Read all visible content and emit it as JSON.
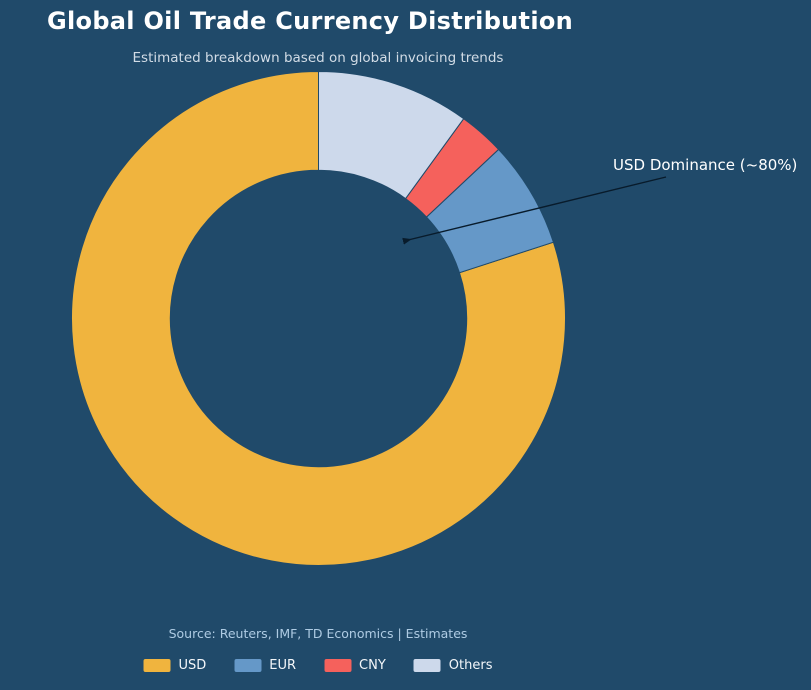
{
  "page": {
    "title": "Global Oil Trade Currency Distribution",
    "subtitle": "Estimated breakdown based on global invoicing trends",
    "source": "Source: Reuters, IMF, TD Economics | Estimates",
    "annotation": "USD Dominance (~80%)"
  },
  "colors": {
    "background": "#204A6A",
    "title_text": "#FFFFFF",
    "subtitle_text": "#D2DCE6",
    "source_text": "#AECBE3",
    "annotation_text": "#FFFFFF",
    "arrow": "#081B2B"
  },
  "chart_data": {
    "type": "pie",
    "style": "donut",
    "title": "Global Oil Trade Currency Distribution",
    "subtitle": "Estimated breakdown based on global invoicing trends",
    "labels": [
      "USD",
      "EUR",
      "CNY",
      "Others"
    ],
    "values": [
      80,
      7,
      3,
      10
    ],
    "units": "percent",
    "colors": [
      "#F0B43E",
      "#6598C8",
      "#F5615C",
      "#CDD9EB"
    ],
    "inner_radius_ratio": 0.6,
    "start_angle": 90,
    "direction": "counterclockwise",
    "legend_position": "bottom",
    "annotation": {
      "text": "USD Dominance (~80%)",
      "target_series": "USD",
      "value_pct": 80
    },
    "source": "Source: Reuters, IMF, TD Economics | Estimates"
  },
  "legend": {
    "items": [
      {
        "label": "USD",
        "color": "#F0B43E"
      },
      {
        "label": "EUR",
        "color": "#6598C8"
      },
      {
        "label": "CNY",
        "color": "#F5615C"
      },
      {
        "label": "Others",
        "color": "#CDD9EB"
      }
    ]
  }
}
